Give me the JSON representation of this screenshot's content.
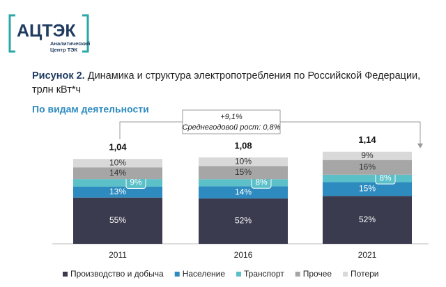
{
  "brand": {
    "name": "АЦТЭК",
    "tagline_1": "Аналитический",
    "tagline_2": "Центр ТЭК"
  },
  "chart_data": {
    "type": "stacked_bar",
    "figure_label": "Рисунок 2.",
    "title": "Динамика и структура электропотребления по Российской Федерации, трлн кВт*ч",
    "subtitle": "По видам деятельности",
    "annotation": {
      "change": "+9,1%",
      "growth": "Среднегодовой рост: 0,8%"
    },
    "categories": [
      "2011",
      "2016",
      "2021"
    ],
    "totals": {
      "values": [
        1.04,
        1.08,
        1.14
      ],
      "value_labels": [
        "1,04",
        "1,08",
        "1,14"
      ]
    },
    "series": [
      {
        "name": "Производство и добыча",
        "color": "#3b3b4f",
        "values": [
          55,
          52,
          52
        ],
        "value_labels": [
          "55%",
          "52%",
          "52%"
        ]
      },
      {
        "name": "Население",
        "color": "#2e8bc0",
        "values": [
          13,
          14,
          15
        ],
        "value_labels": [
          "13%",
          "14%",
          "15%"
        ]
      },
      {
        "name": "Транспорт",
        "color": "#5bc0c8",
        "values": [
          9,
          8,
          8
        ],
        "value_labels": [
          "9%",
          "8%",
          "8%"
        ]
      },
      {
        "name": "Прочее",
        "color": "#a6a6a6",
        "values": [
          14,
          15,
          16
        ],
        "value_labels": [
          "14%",
          "15%",
          "16%"
        ]
      },
      {
        "name": "Потери",
        "color": "#d9d9d9",
        "values": [
          10,
          10,
          9
        ],
        "value_labels": [
          "10%",
          "10%",
          "9%"
        ]
      }
    ]
  }
}
